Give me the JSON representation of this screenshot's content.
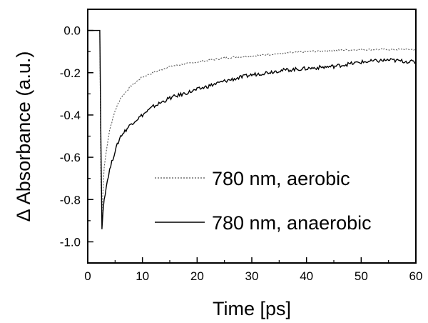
{
  "chart_data": {
    "type": "line",
    "xlabel": "Time [ps]",
    "ylabel": "Δ Absorbance (a.u.)",
    "xlim": [
      0,
      60
    ],
    "ylim": [
      -1.1,
      0.1
    ],
    "x_ticks": [
      0,
      10,
      20,
      30,
      40,
      50,
      60
    ],
    "y_ticks": [
      -1.0,
      -0.8,
      -0.6,
      -0.4,
      -0.2,
      0.0
    ],
    "x_tick_labels": [
      "0",
      "10",
      "20",
      "30",
      "40",
      "50",
      "60"
    ],
    "y_tick_labels": [
      "-1.0",
      "-0.8",
      "-0.6",
      "-0.4",
      "-0.2",
      "0.0"
    ],
    "grid": false,
    "legend_position": "lower-right",
    "series": [
      {
        "name": "780 nm, aerobic",
        "style": "dotted",
        "color": "#555555",
        "x": [
          0,
          2.2,
          2.4,
          2.5,
          2.7,
          3.0,
          3.5,
          4,
          5,
          6,
          8,
          10,
          12,
          15,
          20,
          25,
          30,
          35,
          40,
          45,
          50,
          55,
          60
        ],
        "y": [
          0.0,
          0.0,
          -0.7,
          -0.93,
          -0.8,
          -0.65,
          -0.55,
          -0.47,
          -0.38,
          -0.32,
          -0.26,
          -0.22,
          -0.2,
          -0.17,
          -0.15,
          -0.13,
          -0.12,
          -0.11,
          -0.1,
          -0.095,
          -0.09,
          -0.09,
          -0.09
        ]
      },
      {
        "name": "780 nm, anaerobic",
        "style": "solid",
        "color": "#000000",
        "x": [
          0,
          2.2,
          2.4,
          2.5,
          2.7,
          3.0,
          3.5,
          4,
          5,
          6,
          8,
          10,
          12,
          15,
          20,
          25,
          30,
          35,
          40,
          45,
          50,
          55,
          60
        ],
        "y": [
          0.0,
          0.0,
          -0.5,
          -1.0,
          -0.88,
          -0.8,
          -0.72,
          -0.66,
          -0.57,
          -0.5,
          -0.44,
          -0.4,
          -0.36,
          -0.32,
          -0.28,
          -0.24,
          -0.21,
          -0.19,
          -0.18,
          -0.17,
          -0.15,
          -0.14,
          -0.15
        ]
      }
    ]
  }
}
